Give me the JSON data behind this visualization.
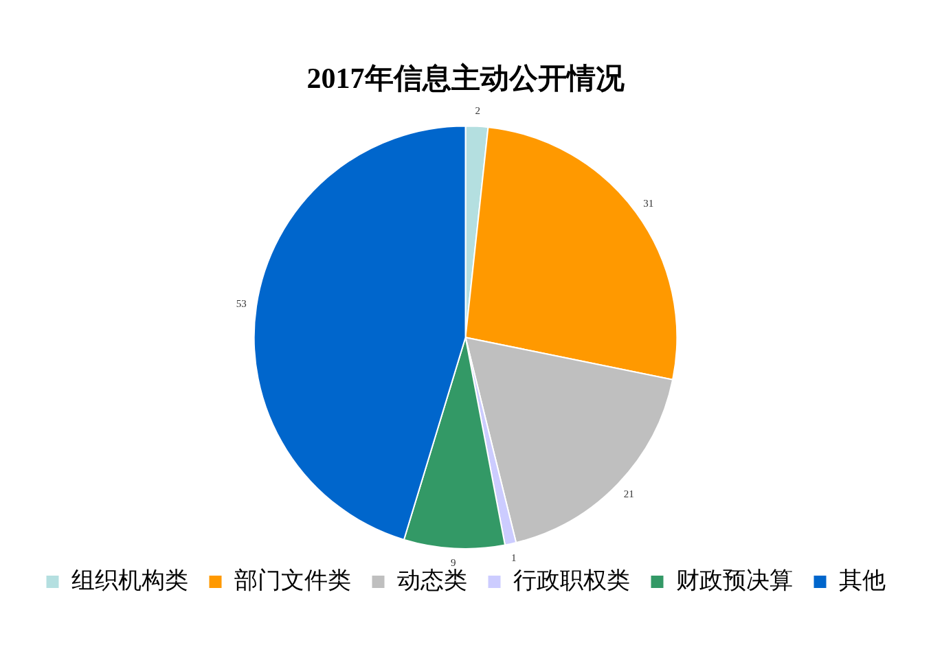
{
  "chart_data": {
    "type": "pie",
    "title": "2017年信息主动公开情况",
    "categories": [
      "组织机构类",
      "部门文件类",
      "动态类",
      "行政职权类",
      "财政预决算",
      "其他"
    ],
    "values": [
      2,
      31,
      21,
      1,
      9,
      53
    ],
    "colors": [
      "#b4dfe0",
      "#ff9900",
      "#bfbfbf",
      "#ccccff",
      "#339966",
      "#0066cc"
    ],
    "legend": "bottom",
    "data_labels": true
  }
}
